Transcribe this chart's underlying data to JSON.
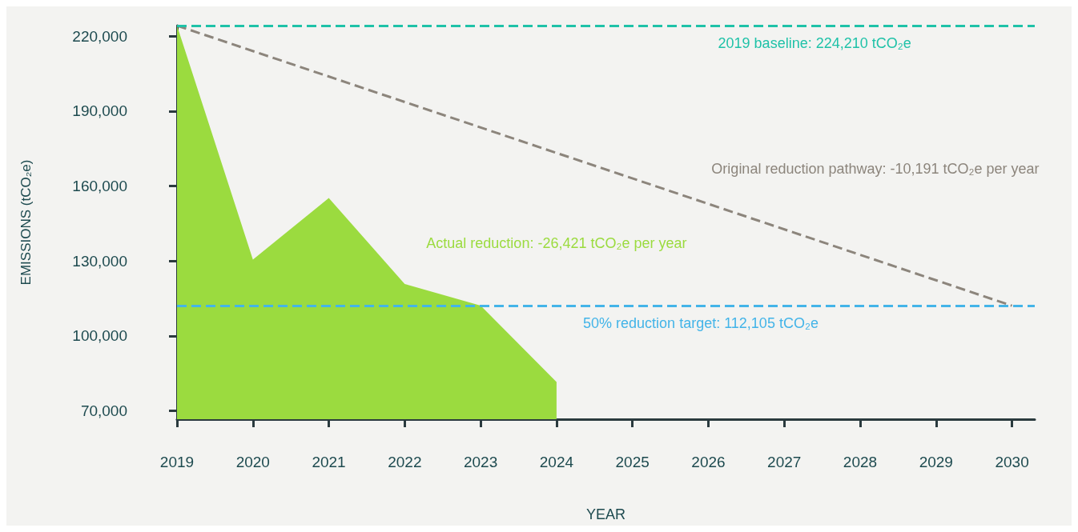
{
  "chart_data": {
    "type": "area",
    "xlabel": "YEAR",
    "ylabel": "EMISSIONS (tCO₂e)",
    "xlim": [
      2019,
      2030.3
    ],
    "xticks": [
      2019,
      2020,
      2021,
      2022,
      2023,
      2024,
      2025,
      2026,
      2027,
      2028,
      2029,
      2030
    ],
    "ylim": [
      66700,
      224210
    ],
    "yticks": [
      {
        "value": 70000,
        "label": "70,000"
      },
      {
        "value": 100000,
        "label": "100,000"
      },
      {
        "value": 130000,
        "label": "130,000"
      },
      {
        "value": 160000,
        "label": "160,000"
      },
      {
        "value": 190000,
        "label": "190,000"
      },
      {
        "value": 220000,
        "label": "220,000"
      }
    ],
    "grid": false,
    "legend": false,
    "series": [
      {
        "name": "Actual reduction: -26,421 tCO₂e per year",
        "color": "#9bdb3f",
        "x": [
          2019,
          2020,
          2021,
          2022,
          2023,
          2024
        ],
        "values": [
          224210,
          130600,
          155200,
          120800,
          112200,
          81600
        ]
      },
      {
        "name": "Original reduction pathway: -10,191 tCO₂e per year",
        "type": "line",
        "line_style": "dashed",
        "marker": "none",
        "color": "#8c857c",
        "x": [
          2019,
          2030
        ],
        "values": [
          224210,
          112105
        ]
      }
    ],
    "ref_lines": [
      {
        "axis": "y",
        "value": 224210,
        "label": "2019 baseline: 224,210 tCO₂e",
        "color": "#1fc2a8",
        "line_style": "dashed"
      },
      {
        "axis": "y",
        "value": 112105,
        "label": "50% reduction target: 112,105 tCO₂e",
        "color": "#43b4e8",
        "line_style": "dashed"
      }
    ]
  }
}
